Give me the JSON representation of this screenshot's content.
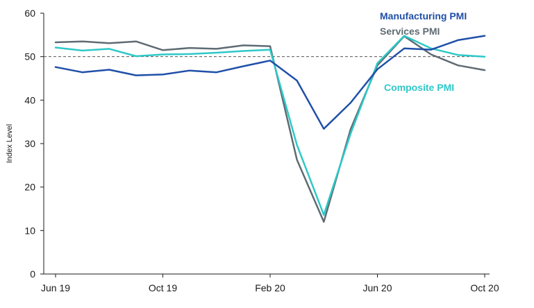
{
  "chart_data": {
    "type": "line",
    "title": "",
    "xlabel": "",
    "ylabel": "Index Level",
    "ylim": [
      0,
      60
    ],
    "yticks": [
      0,
      10,
      20,
      30,
      40,
      50,
      60
    ],
    "grid": false,
    "reference_line": {
      "value": 50,
      "style": "dashed"
    },
    "x_tick_labels": [
      {
        "index": 0,
        "label": "Jun 19"
      },
      {
        "index": 4,
        "label": "Oct 19"
      },
      {
        "index": 8,
        "label": "Feb 20"
      },
      {
        "index": 12,
        "label": "Jun 20"
      },
      {
        "index": 16,
        "label": "Oct 20"
      }
    ],
    "categories": [
      "Jun 19",
      "Jul 19",
      "Aug 19",
      "Sep 19",
      "Oct 19",
      "Nov 19",
      "Dec 19",
      "Jan 20",
      "Feb 20",
      "Mar 20",
      "Apr 20",
      "May 20",
      "Jun 20",
      "Jul 20",
      "Aug 20",
      "Sep 20",
      "Oct 20"
    ],
    "series": [
      {
        "name": "Manufacturing PMI",
        "color": "#1f4fa8",
        "values": [
          47.6,
          46.4,
          47.0,
          45.7,
          45.9,
          46.8,
          46.4,
          47.8,
          49.1,
          44.5,
          33.4,
          39.4,
          47.1,
          51.9,
          51.6,
          53.8,
          54.8
        ]
      },
      {
        "name": "Services PMI",
        "color": "#5f6b73",
        "values": [
          53.3,
          53.5,
          53.1,
          53.5,
          51.5,
          52.0,
          51.8,
          52.6,
          52.4,
          26.3,
          12.0,
          33.3,
          48.0,
          54.7,
          50.5,
          48.0,
          46.9
        ]
      },
      {
        "name": "Composite PMI",
        "color": "#2ec8c8",
        "values": [
          52.1,
          51.4,
          51.8,
          50.1,
          50.5,
          50.6,
          50.9,
          51.3,
          51.6,
          29.7,
          13.6,
          32.3,
          48.5,
          54.8,
          51.9,
          50.4,
          50.0
        ]
      }
    ]
  }
}
